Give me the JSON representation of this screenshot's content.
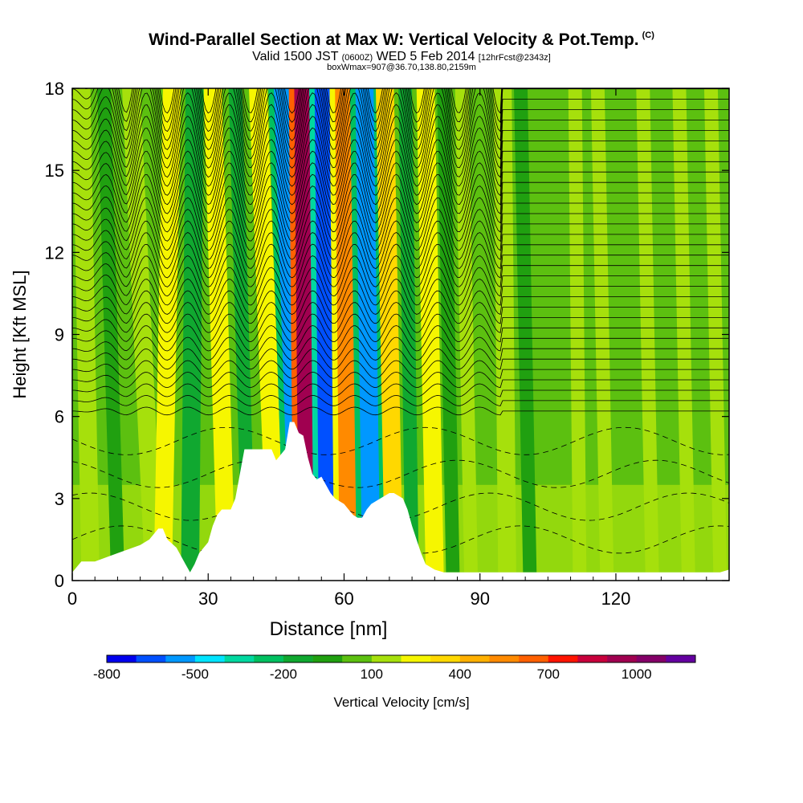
{
  "title": {
    "main": "Wind-Parallel Section at Max W: Vertical Velocity & Pot.Temp.",
    "copyright": "(C)",
    "valid": "Valid 1500 JST",
    "utc": "(0600Z)",
    "date": "WED 5 Feb 2014",
    "forecast": "[12hrFcst@2343z]",
    "box": "boxWmax=907@36.70,138.80,2159m"
  },
  "chart_data": {
    "type": "heatmap",
    "xlabel": "Distance [nm]",
    "ylabel": "Height [Kft MSL]",
    "xlim": [
      0,
      145
    ],
    "ylim": [
      0,
      18
    ],
    "xticks": [
      0,
      30,
      60,
      90,
      120
    ],
    "yticks": [
      0,
      3,
      6,
      9,
      12,
      15,
      18
    ],
    "colorbar": {
      "label": "Vertical Velocity [cm/s]",
      "tick_labels": [
        "-800",
        "-500",
        "-200",
        "100",
        "400",
        "700",
        "1000"
      ],
      "colors": [
        "#0000ee",
        "#0050ff",
        "#0098ff",
        "#00e4ff",
        "#00d8a0",
        "#00c060",
        "#10a830",
        "#20a010",
        "#5cc010",
        "#a6e00c",
        "#f6f600",
        "#ffd800",
        "#ffb000",
        "#ff8a00",
        "#ff6000",
        "#ff1400",
        "#c8003c",
        "#a00050",
        "#840068",
        "#6400a0"
      ]
    },
    "terrain_profile": {
      "x": [
        0,
        2,
        5,
        10,
        15,
        17,
        19,
        20,
        21,
        23,
        25,
        26,
        27,
        28,
        30,
        31,
        32,
        33,
        35,
        36,
        38,
        39,
        41,
        42,
        44,
        45,
        47,
        48,
        49,
        50,
        51,
        52,
        53,
        54,
        55,
        56,
        57,
        58,
        60,
        61,
        62,
        63,
        64,
        65,
        66,
        68,
        70,
        71,
        73,
        74,
        75,
        76,
        77,
        78,
        80,
        82,
        84,
        86,
        88,
        90,
        95,
        100,
        110,
        120,
        130,
        140,
        143,
        145
      ],
      "y_kft": [
        0.3,
        0.7,
        0.7,
        1.0,
        1.3,
        1.5,
        1.9,
        1.9,
        1.5,
        1.2,
        0.6,
        0.3,
        0.6,
        1.0,
        1.4,
        2.0,
        2.4,
        2.6,
        2.6,
        3.0,
        4.8,
        4.8,
        4.8,
        4.8,
        4.8,
        4.4,
        4.8,
        5.8,
        5.8,
        5.4,
        5.3,
        4.5,
        3.9,
        3.7,
        3.8,
        3.5,
        3.2,
        3.0,
        2.8,
        2.6,
        2.4,
        2.3,
        2.3,
        2.6,
        2.8,
        3.0,
        3.2,
        3.2,
        3.0,
        2.6,
        2.0,
        1.5,
        1.0,
        0.6,
        0.4,
        0.3,
        0.3,
        0.3,
        0.3,
        0.3,
        0.3,
        0.3,
        0.3,
        0.3,
        0.3,
        0.3,
        0.3,
        0.4
      ]
    },
    "velocity_bands": [
      {
        "x_top": 2,
        "x_bot": 4,
        "w": 4,
        "value": 100
      },
      {
        "x_top": 7,
        "x_bot": 10,
        "w": 3,
        "value": -100
      },
      {
        "x_top": 13,
        "x_bot": 18,
        "w": 4,
        "value": 100
      },
      {
        "x_top": 22,
        "x_bot": 20,
        "w": 4,
        "value": 250
      },
      {
        "x_top": 27,
        "x_bot": 26,
        "w": 4,
        "value": -150
      },
      {
        "x_top": 31,
        "x_bot": 34,
        "w": 4,
        "value": 200
      },
      {
        "x_top": 36,
        "x_bot": 39,
        "w": 3,
        "value": -150
      },
      {
        "x_top": 41,
        "x_bot": 45,
        "w": 4,
        "value": 250
      },
      {
        "x_top": 46.5,
        "x_bot": 50,
        "w": 4,
        "value": -550
      },
      {
        "x_top": 51,
        "x_bot": 52,
        "w": 4,
        "value": 950
      },
      {
        "x_top": 55.5,
        "x_bot": 56.5,
        "w": 4,
        "value": -700
      },
      {
        "x_top": 60,
        "x_bot": 61,
        "w": 4,
        "value": 550
      },
      {
        "x_top": 64.5,
        "x_bot": 66,
        "w": 4,
        "value": -600
      },
      {
        "x_top": 69,
        "x_bot": 71,
        "w": 4,
        "value": 300
      },
      {
        "x_top": 73.5,
        "x_bot": 75,
        "w": 3,
        "value": -150
      },
      {
        "x_top": 78,
        "x_bot": 80,
        "w": 4,
        "value": 200
      },
      {
        "x_top": 82,
        "x_bot": 84,
        "w": 3,
        "value": -100
      },
      {
        "x_top": 86,
        "x_bot": 88,
        "w": 3,
        "value": 150
      },
      {
        "x_top": 95,
        "x_bot": 96,
        "w": 4,
        "value": 150
      },
      {
        "x_top": 99,
        "x_bot": 101,
        "w": 3,
        "value": -100
      },
      {
        "x_top": 111,
        "x_bot": 112,
        "w": 3,
        "value": 100
      },
      {
        "x_top": 116,
        "x_bot": 118,
        "w": 3,
        "value": 100
      },
      {
        "x_top": 126,
        "x_bot": 128,
        "w": 3,
        "value": 100
      },
      {
        "x_top": 134,
        "x_bot": 136,
        "w": 3,
        "value": 100
      },
      {
        "x_top": 141,
        "x_bot": 143,
        "w": 3,
        "value": 100
      }
    ],
    "theta_contours": "solid black isentropes, tilted through the wave region (x 15-90 nm), nearly horizontal beyond 100 nm; dashed contours in the lower layer"
  }
}
